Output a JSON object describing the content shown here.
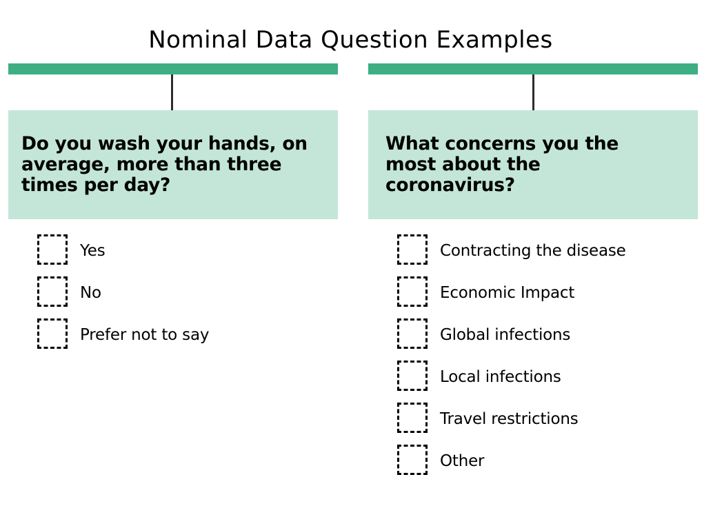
{
  "title": "Nominal Data Question Examples",
  "colors": {
    "accent_bar": "#3daf82",
    "question_fill": "#c3e6d8",
    "stem": "#2b2b2b",
    "checkbox_border": "#000000"
  },
  "questions": [
    {
      "text": "Do you wash your hands, on average, more than three times per day?",
      "options": [
        "Yes",
        "No",
        "Prefer not to say"
      ]
    },
    {
      "text": "What concerns you the most about the coronavirus?",
      "options": [
        "Contracting the disease",
        "Economic Impact",
        "Global infections",
        "Local infections",
        "Travel restrictions",
        "Other"
      ]
    }
  ]
}
